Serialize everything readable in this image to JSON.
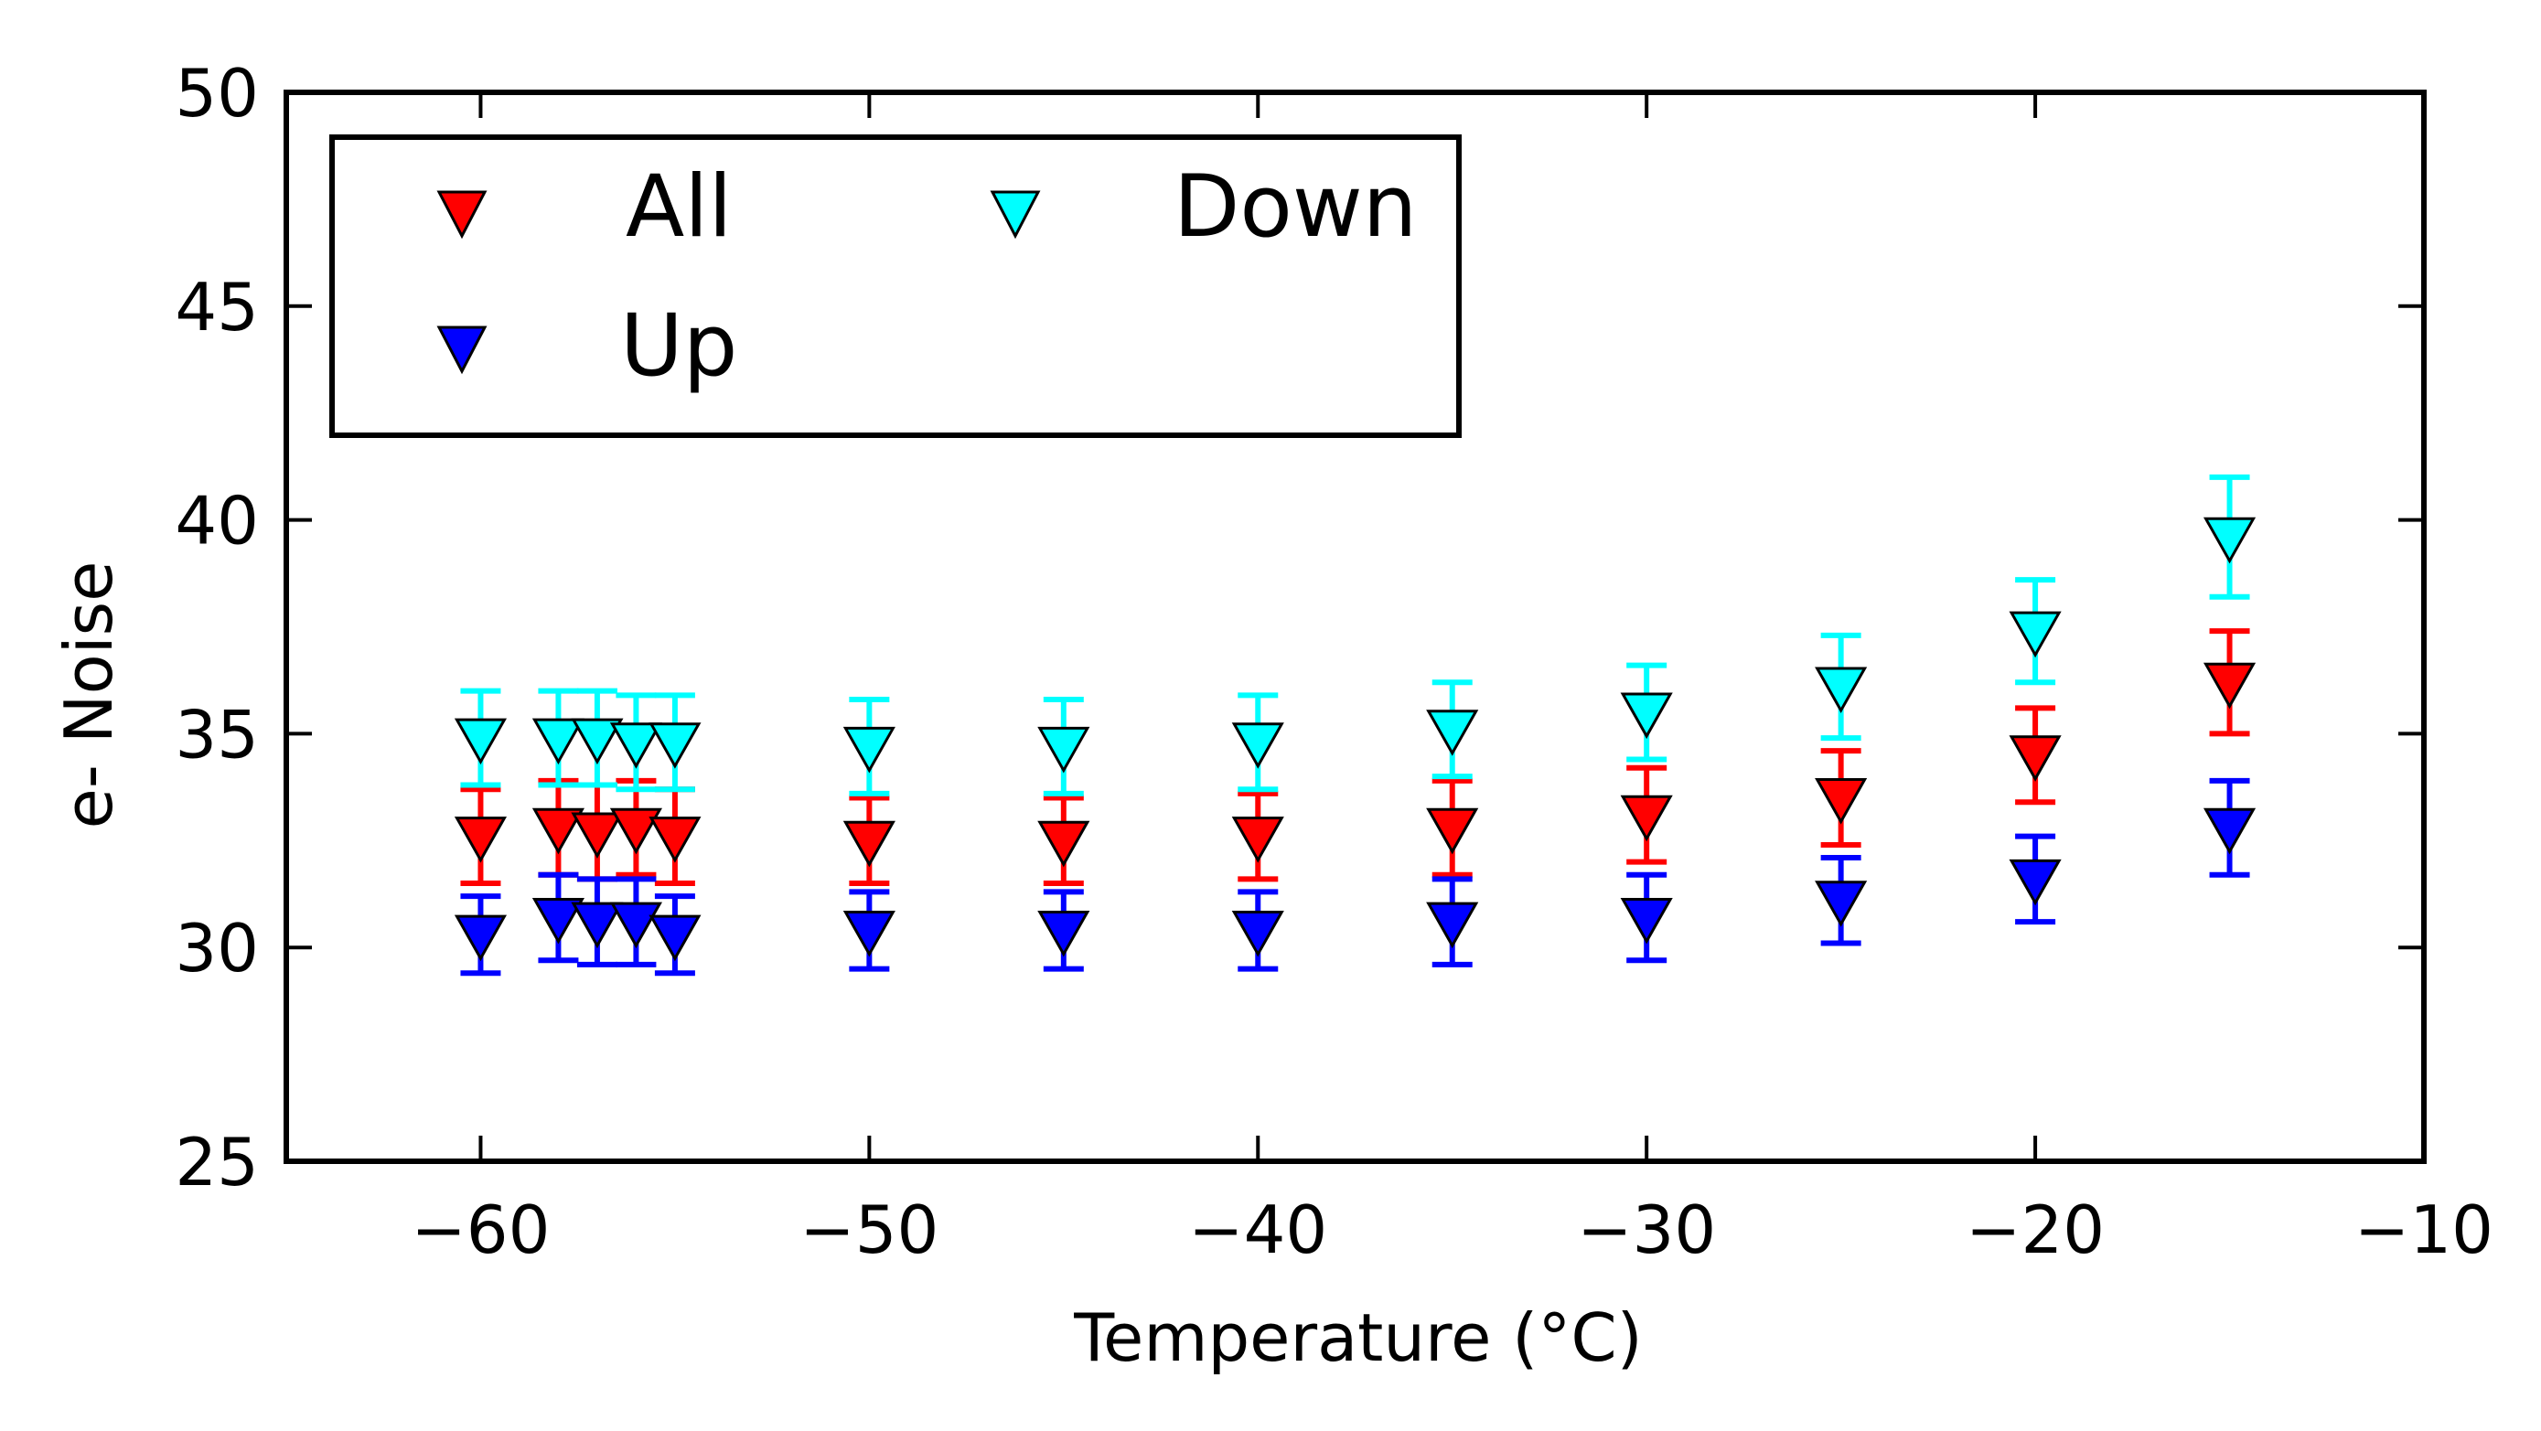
{
  "chart_data": {
    "type": "scatter",
    "title": "",
    "xlabel": "Temperature (°C)",
    "ylabel": "e- Noise",
    "xlim": [
      -65,
      -10
    ],
    "ylim": [
      25,
      50
    ],
    "xticks": [
      -60,
      -50,
      -40,
      -30,
      -20,
      -10
    ],
    "yticks": [
      25,
      30,
      35,
      40,
      45,
      50
    ],
    "xtick_labels": [
      "−60",
      "−50",
      "−40",
      "−30",
      "−20",
      "−10"
    ],
    "ytick_labels": [
      "25",
      "30",
      "35",
      "40",
      "45",
      "50"
    ],
    "grid": false,
    "marker": "triangle-down",
    "legend": {
      "position": "top-left",
      "columns": 2
    },
    "x": [
      -60,
      -58,
      -57,
      -56,
      -55,
      -50,
      -45,
      -40,
      -35,
      -30,
      -25,
      -20,
      -15
    ],
    "series": [
      {
        "name": "All",
        "color": "#ff0000",
        "values": [
          32.6,
          32.8,
          32.7,
          32.8,
          32.6,
          32.5,
          32.5,
          32.6,
          32.8,
          33.1,
          33.5,
          34.5,
          36.2
        ],
        "errors": [
          1.1,
          1.1,
          1.1,
          1.1,
          1.1,
          1.0,
          1.0,
          1.0,
          1.1,
          1.1,
          1.1,
          1.1,
          1.2
        ]
      },
      {
        "name": "Up",
        "color": "#0000ff",
        "values": [
          30.3,
          30.7,
          30.6,
          30.6,
          30.3,
          30.4,
          30.4,
          30.4,
          30.6,
          30.7,
          31.1,
          31.6,
          32.8
        ],
        "errors": [
          0.9,
          1.0,
          1.0,
          1.0,
          0.9,
          0.9,
          0.9,
          0.9,
          1.0,
          1.0,
          1.0,
          1.0,
          1.1
        ]
      },
      {
        "name": "Down",
        "color": "#00ffff",
        "values": [
          34.9,
          34.9,
          34.9,
          34.8,
          34.8,
          34.7,
          34.7,
          34.8,
          35.1,
          35.5,
          36.1,
          37.4,
          39.6
        ],
        "errors": [
          1.1,
          1.1,
          1.1,
          1.1,
          1.1,
          1.1,
          1.1,
          1.1,
          1.1,
          1.1,
          1.2,
          1.2,
          1.4
        ]
      }
    ]
  }
}
